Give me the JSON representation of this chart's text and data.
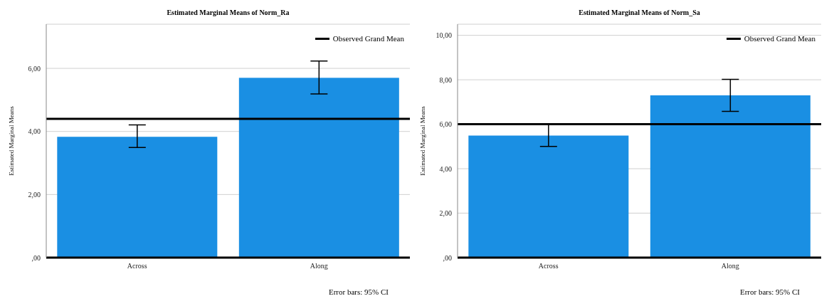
{
  "chart_data": [
    {
      "type": "bar",
      "title": "Estimated Marginal Means of Norm_Ra",
      "ylabel": "Estimated Marginal Means",
      "categories": [
        "Across",
        "Along"
      ],
      "values": [
        3.83,
        5.7
      ],
      "errors": [
        [
          3.49,
          4.21
        ],
        [
          5.19,
          6.23
        ]
      ],
      "color": "#1a8fe3",
      "ylim": [
        0,
        7.4
      ],
      "yticks": [
        {
          "value": 0,
          "label": ",00"
        },
        {
          "value": 2,
          "label": "2,00"
        },
        {
          "value": 4,
          "label": "4,00"
        },
        {
          "value": 6,
          "label": "6,00"
        }
      ],
      "grid": "y",
      "ref_lines": [
        {
          "axis": "y",
          "value": 4.4,
          "label": "Observed Grand Mean",
          "color": "#000000"
        }
      ],
      "legend": "top right",
      "annotations": [
        "Error bars: 95% CI"
      ]
    },
    {
      "type": "bar",
      "title": "Estimated Marginal Means of Norm_Sa",
      "ylabel": "Estimated Marginal Means",
      "categories": [
        "Across",
        "Along"
      ],
      "values": [
        5.49,
        7.3
      ],
      "errors": [
        [
          5.0,
          6.01
        ],
        [
          6.58,
          8.02
        ]
      ],
      "color": "#1a8fe3",
      "ylim": [
        0,
        10.5
      ],
      "yticks": [
        {
          "value": 0,
          "label": ",00"
        },
        {
          "value": 2,
          "label": "2,00"
        },
        {
          "value": 4,
          "label": "4,00"
        },
        {
          "value": 6,
          "label": "6,00"
        },
        {
          "value": 8,
          "label": "8,00"
        },
        {
          "value": 10,
          "label": "10,00"
        }
      ],
      "grid": "y",
      "ref_lines": [
        {
          "axis": "y",
          "value": 6.0,
          "label": "Observed Grand Mean",
          "color": "#000000"
        }
      ],
      "legend": "top right",
      "annotations": [
        "Error bars: 95% CI"
      ]
    }
  ]
}
